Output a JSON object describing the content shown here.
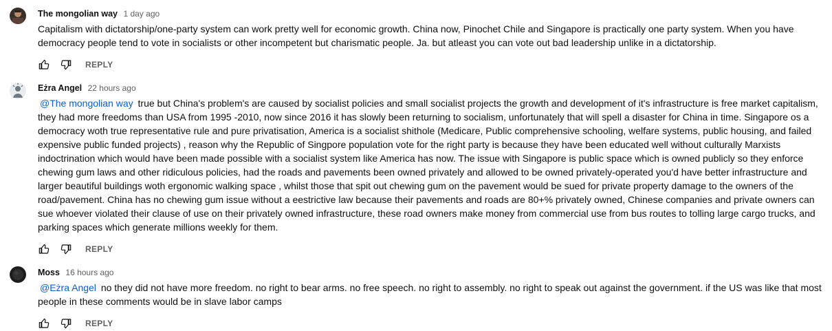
{
  "comments": [
    {
      "author": "The mongolian way",
      "time": "1 day ago",
      "mention": "",
      "text": "Capitalism with dictatorship/one-party system can work pretty well for economic growth. China now, Pinochet Chile and Singapore is practically one party system. When you have democracy people tend to vote in socialists or other incompetent but charismatic people. Ja. but atleast you can vote out bad leadership unlike in a dictatorship.",
      "reply_label": "REPLY"
    },
    {
      "author": "Eżra Angel",
      "time": "22 hours ago",
      "mention": "@The mongolian way",
      "text": "true but China's problem's are caused by socialist policies and small socialist projects the growth and development of it's infrastructure is free market capitalism, they had more freedoms than USA from 1995 -2010, now since 2016 it has slowly been returning to socialism, unfortunately that will spell a disaster for China in time. Singapore os a democracy woth true representative rule and pure privatisation,  America is a socialist shithole (Medicare, Public comprehensive schooling, welfare systems, public housing, and failed expensive public funded projects) , reason why the Republic of Singpore population vote for the right party is because they have been educated well without culturally Marxists indoctrination which would have been made possible with a socialist system like America has now. The issue with Singapore is public space which is owned publicly so they enforce chewing gum laws and other ridiculous policies, had the roads and pavements been owned privately and allowed to be owned privately-operated you'd have better infrastructure and larger beautiful buildings woth ergonomic walking space , whilst those that spit out chewing gum on the pavement would be sued for private property damage to the owners of the road/pavement. China has no chewing gum issue without a eestrictive law because their pavements and roads are 80+% privately owned, Chinese companies and private owners can sue whoever violated their clause of use on their privately owned infrastructure,  these road owners make money from commercial use from bus routes to tolling large cargo trucks, and parking spaces which generate millions weekly for them.",
      "reply_label": "REPLY"
    },
    {
      "author": "Moss",
      "time": "16 hours ago",
      "mention": "@Eżra Angel",
      "text": "no they did not have more freedom. no right to bear arms. no free speech. no right to assembly. no right to speak out against the government. if the US was like that most people in these comments would be in slave labor camps",
      "reply_label": "REPLY"
    }
  ],
  "icons": {
    "like": "thumbs-up-icon",
    "dislike": "thumbs-down-icon"
  },
  "colors": {
    "mention": "#065fd4",
    "secondary_text": "#606060",
    "primary_text": "#0f0f0f"
  }
}
